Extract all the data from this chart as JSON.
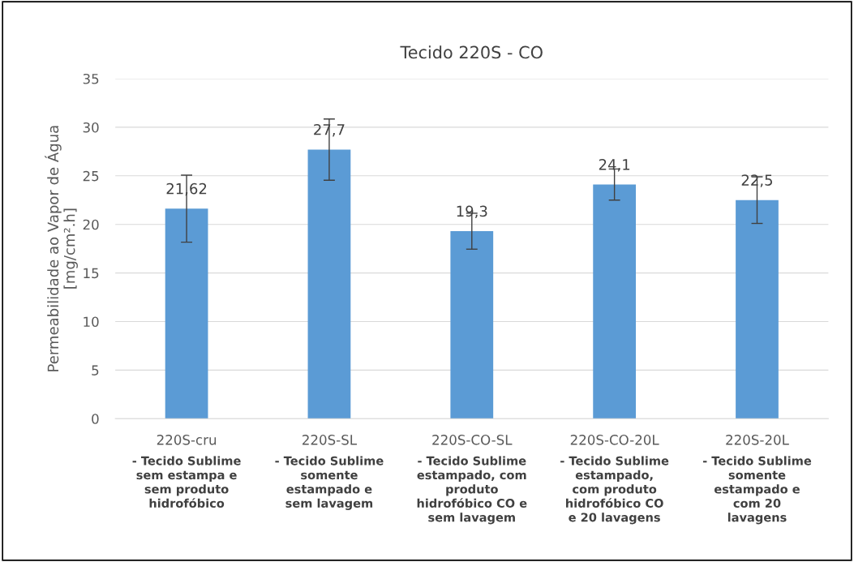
{
  "chart_data": {
    "type": "bar",
    "title": "Tecido 220S - CO",
    "ylabel": "Permeabilidade ao Vapor de Água\n[mg/cm².h]",
    "categories": [
      "220S-cru",
      "220S-SL",
      "220S-CO-SL",
      "220S-CO-20L",
      "220S-20L"
    ],
    "values": [
      21.62,
      27.7,
      19.3,
      24.1,
      22.5
    ],
    "errors": [
      3.45,
      3.15,
      1.85,
      1.6,
      2.4
    ],
    "color": "#5b9bd5",
    "ylim": [
      0,
      35
    ],
    "yticks": [
      0,
      5,
      10,
      15,
      20,
      25,
      30,
      35
    ],
    "grid": "y",
    "value_labels": [
      "21,62",
      "27,7",
      "19,3",
      "24,1",
      "22,5"
    ],
    "annotations": [
      "- Tecido Sublime\nsem estampa e\nsem produto\nhidrofóbico",
      "- Tecido Sublime\nsomente\nestampado e\nsem lavagem",
      "- Tecido Sublime\nestampado, com\nproduto\nhidrofóbico CO e\nsem lavagem",
      "- Tecido Sublime\nestampado,\ncom produto\nhidrofóbico CO\ne 20 lavagens",
      "- Tecido Sublime\nsomente\nestampado e\ncom 20\nlavagens"
    ]
  }
}
